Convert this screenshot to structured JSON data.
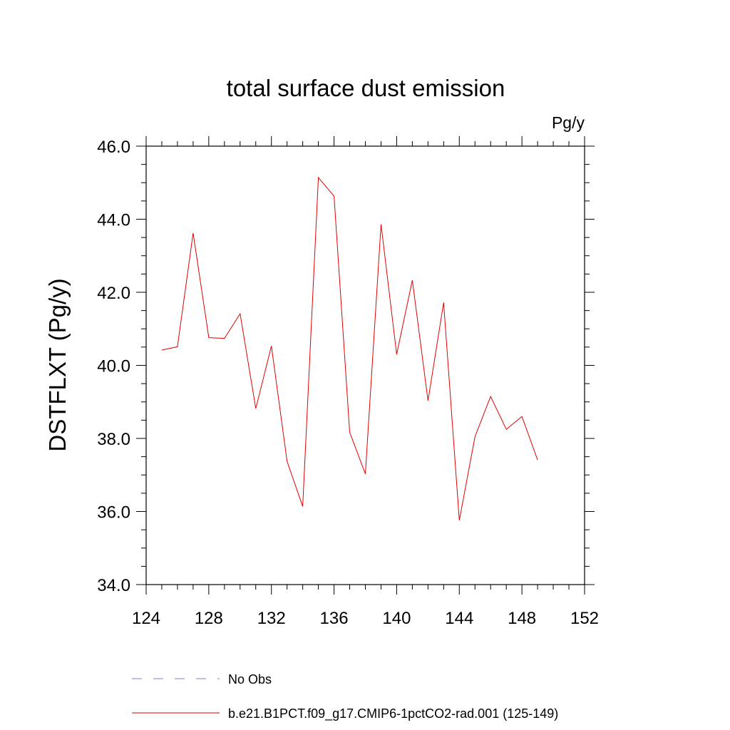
{
  "chart_data": {
    "type": "line",
    "title": "total surface dust emission",
    "units": "Pg/y",
    "ylabel": "DSTFLXT  (Pg/y)",
    "xlabel": "",
    "xlim": [
      124,
      152
    ],
    "ylim": [
      34,
      46
    ],
    "x_ticks": [
      124,
      128,
      132,
      136,
      140,
      144,
      148,
      152
    ],
    "y_ticks": [
      "34.0",
      "36.0",
      "38.0",
      "40.0",
      "42.0",
      "44.0",
      "46.0"
    ],
    "x_minor_step": 1,
    "y_minor_step": 0.5,
    "grid": false,
    "legend_position": "bottom",
    "series": [
      {
        "name": "No Obs",
        "color": "#8080c0",
        "dash": "dashed",
        "x": [],
        "values": []
      },
      {
        "name": "b.e21.B1PCT.f09_g17.CMIP6-1pctCO2-rad.001 (125-149)",
        "color": "#e00000",
        "dash": "solid",
        "x": [
          125,
          126,
          127,
          128,
          129,
          130,
          131,
          132,
          133,
          134,
          135,
          136,
          137,
          138,
          139,
          140,
          141,
          142,
          143,
          144,
          145,
          146,
          147,
          148,
          149
        ],
        "values": [
          40.42,
          40.51,
          43.62,
          40.76,
          40.74,
          41.41,
          38.82,
          40.53,
          37.37,
          36.14,
          45.14,
          44.63,
          38.17,
          37.03,
          43.86,
          40.3,
          42.33,
          39.03,
          41.72,
          35.76,
          38.05,
          39.15,
          38.25,
          38.6,
          37.41
        ]
      }
    ]
  }
}
